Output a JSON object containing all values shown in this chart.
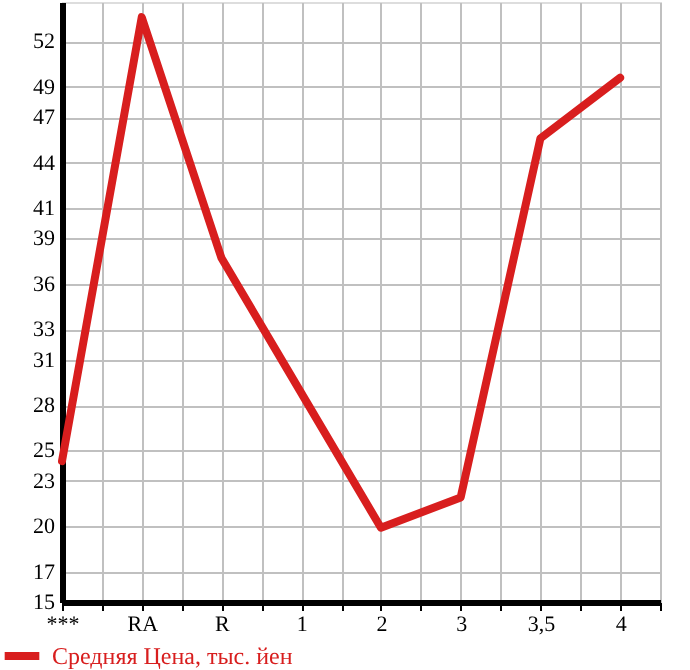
{
  "chart_data": {
    "type": "line",
    "categories": [
      "***",
      "RA",
      "R",
      "1",
      "2",
      "3",
      "3,5",
      "4"
    ],
    "series": [
      {
        "name": "Средняя Цена, тыс. йен",
        "color": "#d81e1e",
        "values": [
          24.3,
          53.6,
          37.7,
          28.8,
          19.9,
          21.9,
          45.6,
          49.6
        ]
      }
    ],
    "ylim": [
      15,
      54.6
    ],
    "yticks": [
      15,
      17,
      20,
      23,
      25,
      28,
      31,
      33,
      36,
      39,
      41,
      44,
      47,
      49,
      52
    ],
    "grid": true,
    "legend": "bottom",
    "marker": "none",
    "line_style": "solid"
  }
}
